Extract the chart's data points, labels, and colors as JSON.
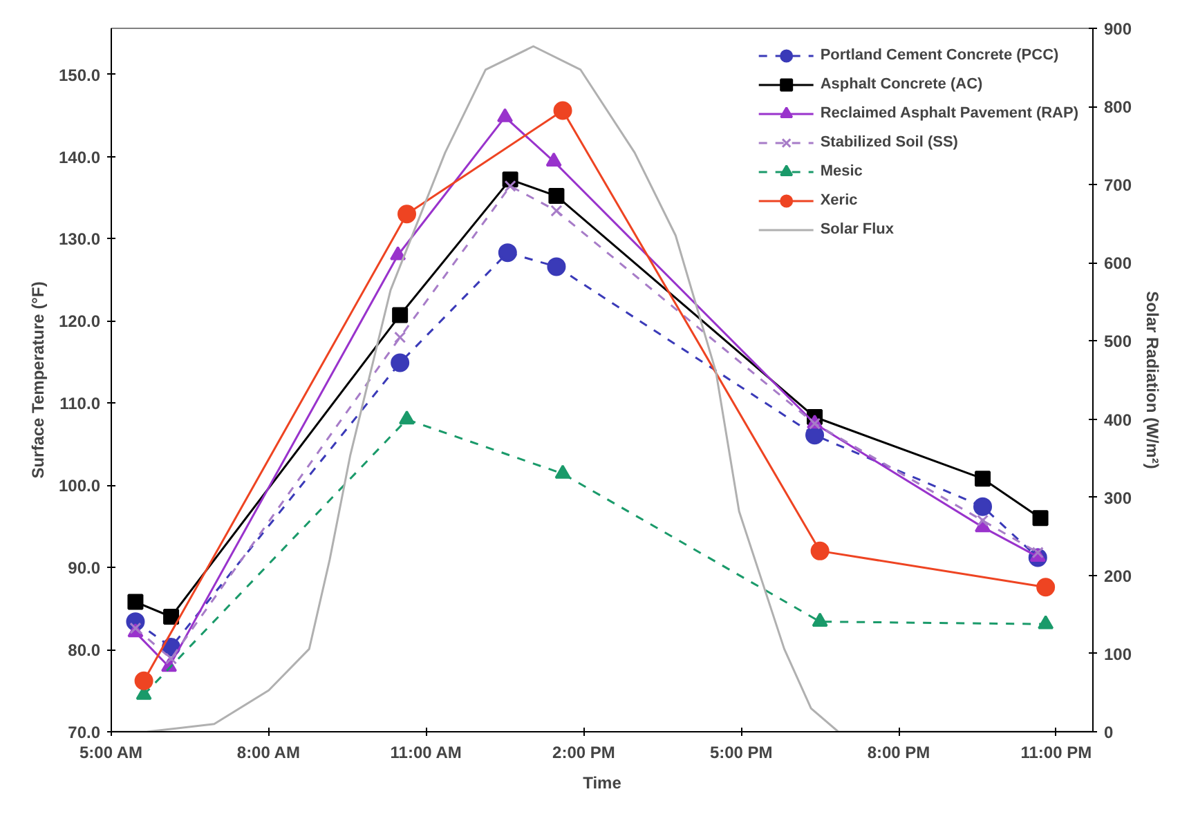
{
  "chart_data": {
    "type": "line",
    "xlabel": "Time",
    "ylabel": "Surface Temperature (°F)",
    "y2label": "Solar Radiation (W/m²)",
    "xlim": [
      5,
      23.7
    ],
    "xticks": [
      {
        "value": 5,
        "label": "5:00 AM"
      },
      {
        "value": 8,
        "label": "8:00 AM"
      },
      {
        "value": 11,
        "label": "11:00 AM"
      },
      {
        "value": 14,
        "label": "2:00 PM"
      },
      {
        "value": 17,
        "label": "5:00 PM"
      },
      {
        "value": 20,
        "label": "8:00 PM"
      },
      {
        "value": 23,
        "label": "11:00 PM"
      }
    ],
    "ylim": [
      70,
      155.6
    ],
    "yticks": [
      {
        "value": 70,
        "label": "70.0"
      },
      {
        "value": 80,
        "label": "80.0"
      },
      {
        "value": 90,
        "label": "90.0"
      },
      {
        "value": 100,
        "label": "100.0"
      },
      {
        "value": 110,
        "label": "110.0"
      },
      {
        "value": 120,
        "label": "120.0"
      },
      {
        "value": 130,
        "label": "130.0"
      },
      {
        "value": 140,
        "label": "140.0"
      },
      {
        "value": 150,
        "label": "150.0"
      }
    ],
    "y2lim": [
      0,
      900
    ],
    "y2ticks": [
      0,
      100,
      200,
      300,
      400,
      500,
      600,
      700,
      800,
      900
    ],
    "grid": false,
    "legend": "top right",
    "series": [
      {
        "name": "Portland Cement Concrete (PCC)",
        "color": "#3a3ab8",
        "marker": "circle",
        "line_style": "dashed",
        "x": [
          5.46,
          6.14,
          10.5,
          12.55,
          13.48,
          18.4,
          21.6,
          22.65
        ],
        "values": [
          83.4,
          80.3,
          114.9,
          128.3,
          126.6,
          106.1,
          97.4,
          91.2
        ]
      },
      {
        "name": "Asphalt Concrete (AC)",
        "color": "#000000",
        "marker": "square",
        "line_style": "solid",
        "x": [
          5.46,
          6.14,
          10.5,
          12.6,
          13.48,
          18.4,
          21.6,
          22.7
        ],
        "values": [
          85.8,
          84.0,
          120.7,
          137.2,
          135.2,
          108.3,
          100.8,
          96.0
        ]
      },
      {
        "name": "Reclaimed Asphalt Pavement (RAP)",
        "color": "#9933cc",
        "marker": "triangle",
        "line_style": "solid",
        "x": [
          5.46,
          6.1,
          10.46,
          12.5,
          13.43,
          18.4,
          21.6,
          22.65
        ],
        "values": [
          82.1,
          77.9,
          128.0,
          144.8,
          139.4,
          107.5,
          94.9,
          91.3
        ]
      },
      {
        "name": "Stabilized Soil (SS)",
        "color": "#a77cc8",
        "marker": "cross",
        "line_style": "dashed",
        "x": [
          5.46,
          6.14,
          10.5,
          12.6,
          13.48,
          18.4,
          21.6,
          22.65
        ],
        "values": [
          82.6,
          78.9,
          118.0,
          136.4,
          133.4,
          107.5,
          95.7,
          91.8
        ]
      },
      {
        "name": "Mesic",
        "color": "#1a9a6a",
        "marker": "triangle",
        "line_style": "dashed",
        "x": [
          5.62,
          10.63,
          13.6,
          18.5,
          22.8
        ],
        "values": [
          74.5,
          108.0,
          101.4,
          83.4,
          83.1
        ]
      },
      {
        "name": "Xeric",
        "color": "#ee4422",
        "marker": "circle",
        "line_style": "solid",
        "x": [
          5.62,
          10.63,
          13.6,
          18.5,
          22.8
        ],
        "values": [
          76.2,
          133.0,
          145.6,
          92.0,
          87.6
        ]
      },
      {
        "name": "Solar Flux",
        "color": "#b0b0b0",
        "marker": "none",
        "line_style": "solid",
        "axis": "y2",
        "x": [
          5.0,
          5.67,
          6.96,
          8.0,
          8.77,
          9.16,
          9.55,
          10.32,
          11.36,
          12.13,
          13.04,
          13.94,
          14.97,
          15.75,
          16.52,
          16.96,
          17.82,
          18.33,
          18.85,
          23.7
        ],
        "values": [
          0,
          0,
          10,
          53,
          106,
          220,
          353,
          565,
          741,
          847,
          877,
          847,
          741,
          635,
          460,
          282,
          106,
          30,
          0,
          0
        ]
      }
    ]
  }
}
